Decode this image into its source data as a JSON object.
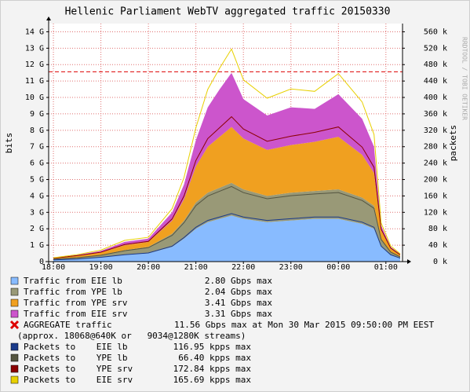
{
  "chart_data": {
    "type": "area",
    "title": "Hellenic Parliament WebTV aggregated traffic 20150330",
    "ylabel": "bits",
    "y2label": "packets",
    "watermark": "RRDTOOL / TOBI OETIKER",
    "x": [
      0,
      0.5,
      1,
      1.5,
      2,
      2.5,
      2.75,
      3,
      3.25,
      3.5,
      3.75,
      4,
      4.5,
      5,
      5.5,
      6,
      6.5,
      6.75,
      6.9,
      7.1,
      7.3
    ],
    "xlim": [
      -0.1,
      7.35
    ],
    "xticks": [
      {
        "value": 0,
        "label": "18:00"
      },
      {
        "value": 1,
        "label": "19:00"
      },
      {
        "value": 2,
        "label": "20:00"
      },
      {
        "value": 3,
        "label": "21:00"
      },
      {
        "value": 4,
        "label": "22:00"
      },
      {
        "value": 5,
        "label": "23:00"
      },
      {
        "value": 6,
        "label": "00:00"
      },
      {
        "value": 7,
        "label": "01:00"
      }
    ],
    "ylim": [
      0,
      14.5
    ],
    "yticks": [
      0,
      {
        "value": 1,
        "label": "1 G"
      },
      {
        "value": 2,
        "label": "2 G"
      },
      {
        "value": 3,
        "label": "3 G"
      },
      {
        "value": 4,
        "label": "4 G"
      },
      {
        "value": 5,
        "label": "5 G"
      },
      {
        "value": 6,
        "label": "6 G"
      },
      {
        "value": 7,
        "label": "7 G"
      },
      {
        "value": 8,
        "label": "8 G"
      },
      {
        "value": 9,
        "label": "9 G"
      },
      {
        "value": 10,
        "label": "10 G"
      },
      {
        "value": 11,
        "label": "11 G"
      },
      {
        "value": 12,
        "label": "12 G"
      },
      {
        "value": 13,
        "label": "13 G"
      },
      {
        "value": 14,
        "label": "14 G"
      }
    ],
    "y2lim": [
      0,
      580
    ],
    "y2ticks": [
      {
        "value": 0,
        "label": "0 k"
      },
      {
        "value": 40,
        "label": "40 k"
      },
      {
        "value": 80,
        "label": "80 k"
      },
      {
        "value": 120,
        "label": "120 k"
      },
      {
        "value": 160,
        "label": "160 k"
      },
      {
        "value": 200,
        "label": "200 k"
      },
      {
        "value": 240,
        "label": "240 k"
      },
      {
        "value": 280,
        "label": "280 k"
      },
      {
        "value": 320,
        "label": "320 k"
      },
      {
        "value": 360,
        "label": "360 k"
      },
      {
        "value": 400,
        "label": "400 k"
      },
      {
        "value": 440,
        "label": "440 k"
      },
      {
        "value": 480,
        "label": "480 k"
      },
      {
        "value": 520,
        "label": "520 k"
      },
      {
        "value": 560,
        "label": "560 k"
      }
    ],
    "grid": true,
    "series": [
      {
        "name": "Traffic from EIE lb",
        "color": "#88bbff",
        "stat": "2.80 Gbps max",
        "values": [
          0.1,
          0.15,
          0.25,
          0.4,
          0.5,
          0.9,
          1.4,
          2.0,
          2.4,
          2.6,
          2.8,
          2.6,
          2.4,
          2.5,
          2.6,
          2.6,
          2.3,
          2.0,
          0.9,
          0.4,
          0.2
        ]
      },
      {
        "name": "Traffic from YPE lb",
        "color": "#999977",
        "stat": "2.04 Gbps max",
        "values": [
          0.05,
          0.1,
          0.15,
          0.3,
          0.4,
          0.8,
          1.1,
          1.6,
          1.8,
          1.9,
          2.0,
          1.8,
          1.6,
          1.7,
          1.7,
          1.8,
          1.6,
          1.4,
          0.5,
          0.2,
          0.1
        ]
      },
      {
        "name": "Traffic from YPE srv",
        "color": "#f0a020",
        "stat": "3.41 Gbps max",
        "values": [
          0.05,
          0.1,
          0.15,
          0.3,
          0.3,
          0.8,
          1.3,
          2.2,
          2.8,
          3.1,
          3.4,
          3.1,
          2.8,
          2.9,
          3.0,
          3.2,
          2.6,
          2.0,
          0.5,
          0.2,
          0.1
        ]
      },
      {
        "name": "Traffic from EIE srv",
        "color": "#cc55cc",
        "stat": "3.31 Gbps max",
        "values": [
          0.02,
          0.05,
          0.1,
          0.2,
          0.2,
          0.5,
          0.9,
          1.6,
          2.4,
          2.9,
          3.3,
          2.4,
          2.1,
          2.3,
          2.0,
          2.6,
          2.2,
          1.6,
          0.3,
          0.1,
          0.05
        ]
      },
      {
        "name": "Packets to    EIE lb",
        "color": "#1a3a8a",
        "axis": "y2",
        "stat": "116.95 kpps max",
        "values": [
          4.2,
          6.3,
          10.5,
          16.7,
          21.0,
          37.6,
          58.5,
          83.6,
          100.3,
          108.7,
          117.0,
          108.7,
          100.3,
          104.5,
          108.7,
          108.7,
          96.1,
          83.6,
          37.6,
          16.7,
          8.4
        ]
      },
      {
        "name": "Packets to    YPE lb",
        "color": "#555540",
        "axis": "y2",
        "stat": "66.40 kpps max",
        "values": [
          1.7,
          3.3,
          5.0,
          9.9,
          13.2,
          26.4,
          36.3,
          52.8,
          59.4,
          62.7,
          66.0,
          59.4,
          52.8,
          56.1,
          56.1,
          59.4,
          52.8,
          46.2,
          16.5,
          6.6,
          3.3
        ]
      },
      {
        "name": "Packets to    YPE srv",
        "color": "#8b0000",
        "axis": "y2",
        "stat": "172.84 kpps max",
        "values": [
          2.5,
          5,
          7.5,
          15,
          15,
          40,
          65,
          110,
          140,
          155,
          170,
          155,
          140,
          145,
          150,
          160,
          130,
          100,
          25,
          10,
          5
        ]
      },
      {
        "name": "Packets to    EIE srv",
        "color": "#e8d000",
        "axis": "y2",
        "stat": "165.69 kpps max",
        "values": [
          1,
          2.5,
          5,
          10,
          10,
          25,
          45,
          80,
          120,
          145,
          165,
          120,
          105,
          115,
          100,
          130,
          110,
          80,
          15,
          5,
          2.5
        ]
      }
    ],
    "hline": {
      "name": "AGGREGATE traffic",
      "value": 11.56,
      "color": "#dd0000",
      "stat": "11.56 Gbps max at Mon 30 Mar 2015 09:50:00 PM EEST"
    },
    "note": "(approx. 18068@640K or   9034@1280K streams)"
  }
}
